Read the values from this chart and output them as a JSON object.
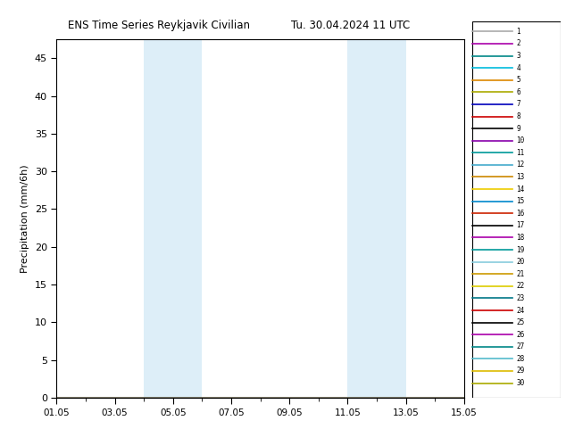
{
  "title_left": "ENS Time Series Reykjavik Civilian",
  "title_right": "Tu. 30.04.2024 11 UTC",
  "ylabel": "Precipitation (mm/6h)",
  "ylim": [
    0,
    47.5
  ],
  "yticks": [
    0,
    5,
    10,
    15,
    20,
    25,
    30,
    35,
    40,
    45
  ],
  "x_start_days": 0,
  "x_end_days": 14,
  "xtick_positions": [
    0,
    2,
    4,
    6,
    8,
    10,
    12,
    14
  ],
  "xtick_labels": [
    "01.05",
    "03.05",
    "05.05",
    "07.05",
    "09.05",
    "11.05",
    "13.05",
    "15.05"
  ],
  "shade_regions": [
    [
      3,
      4
    ],
    [
      4,
      5
    ],
    [
      10,
      11
    ],
    [
      11,
      12
    ]
  ],
  "shade_color": "#ddeef8",
  "n_members": 30,
  "member_colors": [
    "#aaaaaa",
    "#aa00aa",
    "#008888",
    "#00bbdd",
    "#dd8800",
    "#aaaa00",
    "#0000bb",
    "#cc0000",
    "#000000",
    "#8800aa",
    "#009999",
    "#44aacc",
    "#cc8800",
    "#eecc00",
    "#0088cc",
    "#cc2200",
    "#000000",
    "#aa00aa",
    "#009999",
    "#88ccdd",
    "#cc9900",
    "#ddcc00",
    "#007788",
    "#cc0000",
    "#000000",
    "#aa00aa",
    "#008888",
    "#55bbcc",
    "#ddbb00",
    "#aaaa00"
  ],
  "background_color": "#ffffff"
}
